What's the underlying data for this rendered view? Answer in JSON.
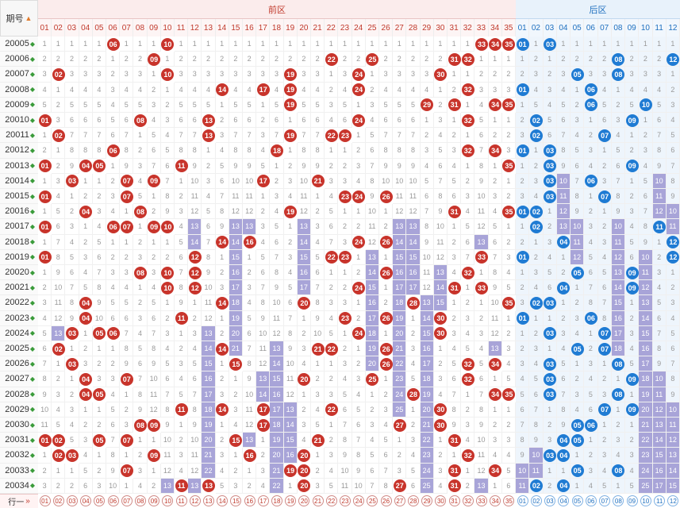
{
  "header": {
    "period_label": "期号",
    "sort_icon": "sort-icon",
    "front_zone": "前区",
    "back_zone": "后区"
  },
  "front_numbers": [
    "01",
    "02",
    "03",
    "04",
    "05",
    "06",
    "07",
    "08",
    "09",
    "10",
    "11",
    "12",
    "13",
    "14",
    "15",
    "16",
    "17",
    "18",
    "19",
    "20",
    "21",
    "22",
    "23",
    "24",
    "25",
    "26",
    "27",
    "28",
    "29",
    "30",
    "31",
    "32",
    "33",
    "34",
    "35"
  ],
  "back_numbers": [
    "01",
    "02",
    "03",
    "04",
    "05",
    "06",
    "07",
    "08",
    "09",
    "10",
    "11",
    "12"
  ],
  "colors": {
    "front_ball": "#c8342b",
    "back_ball": "#1f7bd3",
    "streak": "#a8a4d8"
  },
  "draws": [
    {
      "id": "20005",
      "front": [
        "06",
        "10",
        "33",
        "34",
        "35"
      ],
      "back": [
        "01",
        "03"
      ]
    },
    {
      "id": "20006",
      "front": [
        "09",
        "22",
        "25",
        "31",
        "32"
      ],
      "back": [
        "08",
        "12"
      ]
    },
    {
      "id": "20007",
      "front": [
        "02",
        "10",
        "19",
        "24",
        "30"
      ],
      "back": [
        "05",
        "08"
      ]
    },
    {
      "id": "20008",
      "front": [
        "14",
        "17",
        "19",
        "24",
        "32"
      ],
      "back": [
        "01",
        "06"
      ]
    },
    {
      "id": "20009",
      "front": [
        "19",
        "29",
        "31",
        "34",
        "35"
      ],
      "back": [
        "06",
        "10"
      ]
    },
    {
      "id": "20010",
      "front": [
        "01",
        "08",
        "13",
        "24",
        "32"
      ],
      "back": [
        "02",
        "09"
      ]
    },
    {
      "id": "20011",
      "front": [
        "02",
        "13",
        "19",
        "22",
        "23"
      ],
      "back": [
        "02",
        "07"
      ]
    },
    {
      "id": "20012",
      "front": [
        "06",
        "18",
        "32",
        "34"
      ],
      "back": [
        "01",
        "03"
      ]
    },
    {
      "id": "20013",
      "front": [
        "01",
        "04",
        "05",
        "11",
        "35"
      ],
      "back": [
        "03",
        "09"
      ]
    },
    {
      "id": "20014",
      "front": [
        "03",
        "07",
        "09",
        "17",
        "21"
      ],
      "back": [
        "03",
        "06"
      ]
    },
    {
      "id": "20015",
      "front": [
        "01",
        "07",
        "23",
        "24",
        "26"
      ],
      "back": [
        "03",
        "07"
      ]
    },
    {
      "id": "20016",
      "front": [
        "04",
        "08",
        "19",
        "31",
        "35"
      ],
      "back": [
        "01",
        "02"
      ]
    },
    {
      "id": "20017",
      "front": [
        "01",
        "06",
        "07",
        "09",
        "10"
      ],
      "back": [
        "02",
        "11"
      ]
    },
    {
      "id": "20018",
      "front": [
        "14",
        "16",
        "24",
        "26"
      ],
      "back": [
        "04",
        "12"
      ]
    },
    {
      "id": "20019",
      "front": [
        "01",
        "12",
        "22",
        "23",
        "33"
      ],
      "back": [
        "01",
        "12"
      ]
    },
    {
      "id": "20020",
      "front": [
        "08",
        "10",
        "12",
        "26",
        "32"
      ],
      "back": [
        "05",
        "09"
      ]
    },
    {
      "id": "20021",
      "front": [
        "10",
        "12",
        "24",
        "31",
        "33"
      ],
      "back": [
        "04",
        "09"
      ]
    },
    {
      "id": "20022",
      "front": [
        "04",
        "14",
        "20",
        "28",
        "35"
      ],
      "back": [
        "02",
        "03"
      ]
    },
    {
      "id": "20023",
      "front": [
        "04",
        "11",
        "23",
        "26",
        "30"
      ],
      "back": [
        "01",
        "06"
      ]
    },
    {
      "id": "20024",
      "front": [
        "03",
        "05",
        "06",
        "24",
        "30"
      ],
      "back": [
        "03",
        "07"
      ]
    },
    {
      "id": "20025",
      "front": [
        "02",
        "14",
        "21",
        "22",
        "26"
      ],
      "back": [
        "05",
        "07"
      ]
    },
    {
      "id": "20026",
      "front": [
        "03",
        "15",
        "26",
        "32",
        "34"
      ],
      "back": [
        "03",
        "08"
      ]
    },
    {
      "id": "20027",
      "front": [
        "04",
        "07",
        "20",
        "25",
        "32"
      ],
      "back": [
        "03",
        "09"
      ]
    },
    {
      "id": "20028",
      "front": [
        "04",
        "05",
        "28",
        "34",
        "35"
      ],
      "back": [
        "03",
        "08"
      ]
    },
    {
      "id": "20029",
      "front": [
        "11",
        "14",
        "17",
        "22",
        "30"
      ],
      "back": [
        "07",
        "09"
      ]
    },
    {
      "id": "20030",
      "front": [
        "08",
        "09",
        "17",
        "27",
        "30"
      ],
      "back": [
        "05",
        "06"
      ]
    },
    {
      "id": "20031",
      "front": [
        "01",
        "02",
        "05",
        "07",
        "15",
        "21",
        "31"
      ],
      "back": [
        "04",
        "05"
      ]
    },
    {
      "id": "20032",
      "front": [
        "02",
        "03",
        "09",
        "16",
        "20",
        "32"
      ],
      "back": [
        "03",
        "04"
      ]
    },
    {
      "id": "20033",
      "front": [
        "07",
        "19",
        "20",
        "31",
        "34"
      ],
      "back": [
        "05",
        "08"
      ]
    },
    {
      "id": "20034",
      "front": [
        "11",
        "13",
        "20",
        "27",
        "31"
      ],
      "back": [
        "02",
        "04"
      ]
    }
  ],
  "footer": {
    "label": "行一"
  }
}
